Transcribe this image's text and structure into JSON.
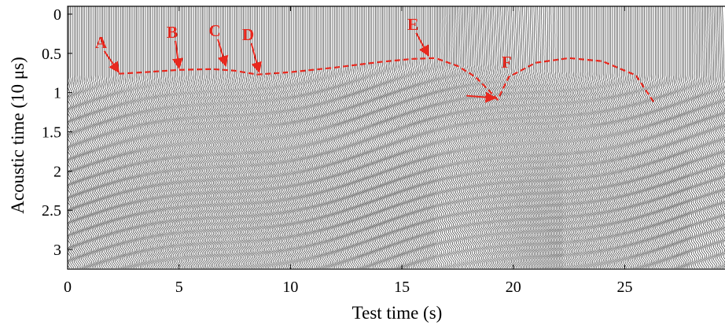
{
  "chart_data": {
    "type": "line",
    "title": "",
    "xlabel": "Test time (s)",
    "ylabel": "Acoustic time (10 μs)",
    "xlim": [
      0,
      29.5
    ],
    "ylim": [
      3.25,
      -0.1
    ],
    "y_inverted": true,
    "x_ticks": [
      0,
      5,
      10,
      15,
      20,
      25
    ],
    "y_ticks": [
      0,
      0.5,
      1,
      1.5,
      2,
      2.5,
      3
    ],
    "x_tick_labels": [
      "0",
      "5",
      "10",
      "15",
      "20",
      "25"
    ],
    "y_tick_labels": [
      "0",
      "0.5",
      "1",
      "1.5",
      "2",
      "2.5",
      "3"
    ],
    "grid": false,
    "legend": "none",
    "series": [
      {
        "style": "dashed",
        "color": "#e8281e",
        "x": [
          2.3,
          3.5,
          5.0,
          6.5,
          7.5,
          8.5,
          10.0,
          12.0,
          14.0,
          15.5,
          16.5,
          17.5,
          18.3,
          19.0,
          19.3,
          19.8,
          21.0,
          22.5,
          24.0,
          25.5,
          26.3
        ],
        "y": [
          0.76,
          0.74,
          0.71,
          0.7,
          0.72,
          0.77,
          0.74,
          0.68,
          0.61,
          0.57,
          0.56,
          0.66,
          0.8,
          1.0,
          1.09,
          0.8,
          0.62,
          0.56,
          0.6,
          0.78,
          1.12
        ]
      }
    ],
    "annotations": [
      {
        "text": "A",
        "x": 1.5,
        "y": 0.43,
        "arrow_to": [
          2.3,
          0.76
        ]
      },
      {
        "text": "B",
        "x": 4.7,
        "y": 0.3,
        "arrow_to": [
          5.0,
          0.71
        ]
      },
      {
        "text": "C",
        "x": 6.6,
        "y": 0.28,
        "arrow_to": [
          7.1,
          0.68
        ]
      },
      {
        "text": "D",
        "x": 8.1,
        "y": 0.33,
        "arrow_to": [
          8.6,
          0.76
        ]
      },
      {
        "text": "E",
        "x": 15.5,
        "y": 0.2,
        "arrow_to": [
          16.2,
          0.55
        ]
      },
      {
        "text": "F",
        "x": 19.7,
        "y": 0.68,
        "arrow_to": [
          19.2,
          1.07
        ],
        "arrow_from": [
          17.9,
          1.04
        ]
      }
    ],
    "colors": {
      "annotation": "#e8281e",
      "waveform": "#000000"
    }
  }
}
